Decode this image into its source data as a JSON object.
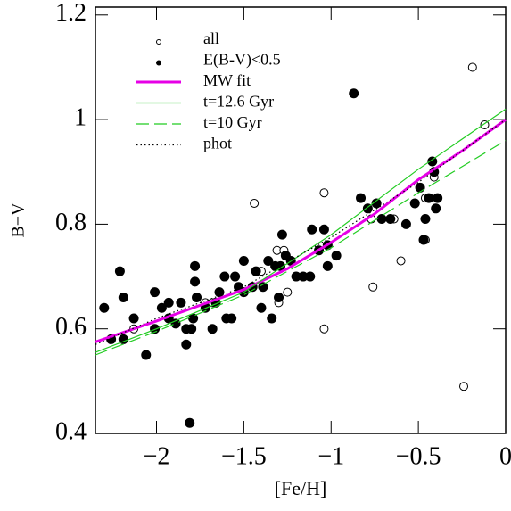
{
  "chart_data": {
    "type": "scatter",
    "xlabel": "[Fe/H]",
    "ylabel": "B−V",
    "xlim": [
      -2.35,
      0
    ],
    "ylim": [
      0.4,
      1.215
    ],
    "xticks": [
      {
        "value": -2,
        "label": "−2"
      },
      {
        "value": -1.5,
        "label": "−1.5"
      },
      {
        "value": -1,
        "label": "−1"
      },
      {
        "value": -0.5,
        "label": "−0.5"
      },
      0
    ],
    "yticks": [
      0.4,
      0.6,
      0.8,
      1,
      1.2
    ],
    "legend": "upper left",
    "series": [
      {
        "name": "all",
        "kind": "scatter",
        "marker": "open",
        "color": "#000000",
        "x": [
          -2.13,
          -1.72,
          -1.68,
          -1.44,
          -1.4,
          -1.31,
          -1.27,
          -1.3,
          -1.25,
          -1.04,
          -1.04,
          -0.77,
          -0.76,
          -0.64,
          -0.6,
          -0.46,
          -0.46,
          -0.41,
          -0.24,
          -0.19,
          -0.12
        ],
        "values": [
          0.6,
          0.65,
          0.65,
          0.84,
          0.71,
          0.75,
          0.75,
          0.65,
          0.67,
          0.86,
          0.6,
          0.81,
          0.68,
          0.81,
          0.73,
          0.85,
          0.77,
          0.89,
          0.49,
          1.1,
          0.99
        ]
      },
      {
        "name": "E(B-V)<0.5",
        "kind": "scatter",
        "marker": "filled",
        "color": "#000000",
        "x": [
          -2.3,
          -2.26,
          -2.21,
          -2.19,
          -2.19,
          -2.13,
          -2.06,
          -2.01,
          -2.01,
          -1.97,
          -1.93,
          -1.93,
          -1.89,
          -1.86,
          -1.83,
          -1.83,
          -1.8,
          -1.79,
          -1.81,
          -1.78,
          -1.77,
          -1.78,
          -1.72,
          -1.68,
          -1.66,
          -1.64,
          -1.61,
          -1.6,
          -1.57,
          -1.55,
          -1.53,
          -1.5,
          -1.5,
          -1.45,
          -1.43,
          -1.4,
          -1.39,
          -1.36,
          -1.34,
          -1.32,
          -1.3,
          -1.28,
          -1.29,
          -1.26,
          -1.23,
          -1.2,
          -1.16,
          -1.12,
          -1.11,
          -1.07,
          -1.04,
          -1.02,
          -1.02,
          -0.97,
          -0.87,
          -0.83,
          -0.79,
          -0.74,
          -0.71,
          -0.66,
          -0.57,
          -0.52,
          -0.47,
          -0.46,
          -0.44,
          -0.4,
          -0.39,
          -0.42,
          -0.41,
          -0.49
        ],
        "values": [
          0.64,
          0.58,
          0.71,
          0.66,
          0.58,
          0.62,
          0.55,
          0.67,
          0.6,
          0.64,
          0.65,
          0.62,
          0.61,
          0.65,
          0.57,
          0.6,
          0.6,
          0.62,
          0.42,
          0.72,
          0.66,
          0.69,
          0.64,
          0.6,
          0.65,
          0.67,
          0.7,
          0.62,
          0.62,
          0.7,
          0.68,
          0.73,
          0.67,
          0.68,
          0.71,
          0.64,
          0.68,
          0.73,
          0.62,
          0.72,
          0.66,
          0.78,
          0.72,
          0.74,
          0.73,
          0.7,
          0.7,
          0.7,
          0.79,
          0.75,
          0.79,
          0.72,
          0.76,
          0.74,
          1.05,
          0.85,
          0.83,
          0.84,
          0.81,
          0.81,
          0.8,
          0.84,
          0.77,
          0.81,
          0.85,
          0.83,
          0.85,
          0.92,
          0.9,
          0.87
        ]
      },
      {
        "name": "MW fit",
        "kind": "line",
        "dash": "solid",
        "width": 3,
        "color": "#e600e6",
        "x": [
          -2.35,
          -2,
          -1.5,
          -1.25,
          -1,
          -0.75,
          -0.5,
          -0.25,
          0
        ],
        "values": [
          0.575,
          0.615,
          0.675,
          0.715,
          0.765,
          0.82,
          0.885,
          0.94,
          1.0
        ]
      },
      {
        "name": "t=12.6 Gyr",
        "kind": "line",
        "dash": "solid",
        "width": 1.2,
        "color": "#22cc22",
        "x": [
          -2.35,
          -2,
          -1.5,
          -1,
          -0.5,
          0
        ],
        "values": [
          0.555,
          0.6,
          0.67,
          0.78,
          0.905,
          1.02
        ]
      },
      {
        "name": "t=10 Gyr",
        "kind": "line",
        "dash": "dashed",
        "width": 1.2,
        "color": "#22cc22",
        "x": [
          -2.35,
          -2,
          -1.5,
          -1,
          -0.5,
          0
        ],
        "values": [
          0.55,
          0.595,
          0.665,
          0.755,
          0.86,
          0.96
        ]
      },
      {
        "name": "phot",
        "kind": "line",
        "dash": "dotted",
        "width": 1.2,
        "color": "#000000",
        "x": [
          -2.35,
          -2,
          -1.5,
          -1,
          -0.5,
          0
        ],
        "values": [
          0.57,
          0.62,
          0.68,
          0.775,
          0.88,
          1.0
        ]
      }
    ]
  }
}
